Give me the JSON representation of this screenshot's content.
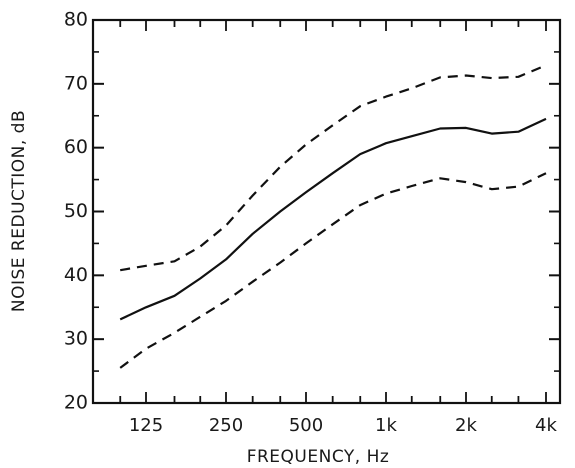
{
  "chart_data": {
    "type": "line",
    "xlabel": "FREQUENCY, Hz",
    "ylabel": "NOISE REDUCTION, dB",
    "ylim": [
      20,
      80
    ],
    "y_ticks": [
      20,
      30,
      40,
      50,
      60,
      70,
      80
    ],
    "x_scale": "log",
    "x_ticks": [
      {
        "label": "125",
        "value": 125
      },
      {
        "label": "250",
        "value": 250
      },
      {
        "label": "500",
        "value": 500
      },
      {
        "label": "1k",
        "value": 1000
      },
      {
        "label": "2k",
        "value": 2000
      },
      {
        "label": "4k",
        "value": 4000
      }
    ],
    "x": [
      100,
      125,
      160,
      200,
      250,
      315,
      400,
      500,
      630,
      800,
      1000,
      1250,
      1600,
      2000,
      2500,
      3150,
      4000
    ],
    "series": [
      {
        "style": "dashed",
        "values": [
          40.8,
          41.5,
          42.2,
          44.5,
          47.8,
          52.5,
          57.0,
          60.5,
          63.5,
          66.5,
          68.0,
          69.3,
          71.0,
          71.3,
          70.9,
          71.1,
          72.9
        ]
      },
      {
        "style": "solid",
        "values": [
          33.1,
          35.0,
          36.8,
          39.5,
          42.5,
          46.5,
          50.0,
          53.0,
          56.0,
          59.0,
          60.7,
          61.8,
          63.0,
          63.1,
          62.2,
          62.5,
          64.5
        ]
      },
      {
        "style": "dashed",
        "values": [
          25.5,
          28.5,
          31.0,
          33.5,
          36.0,
          39.0,
          42.0,
          45.0,
          48.0,
          51.0,
          52.8,
          54.0,
          55.2,
          54.6,
          53.5,
          53.9,
          56.0
        ]
      }
    ],
    "grid": false,
    "tick_marks": "inside, both axes, minor ticks at unit steps"
  }
}
